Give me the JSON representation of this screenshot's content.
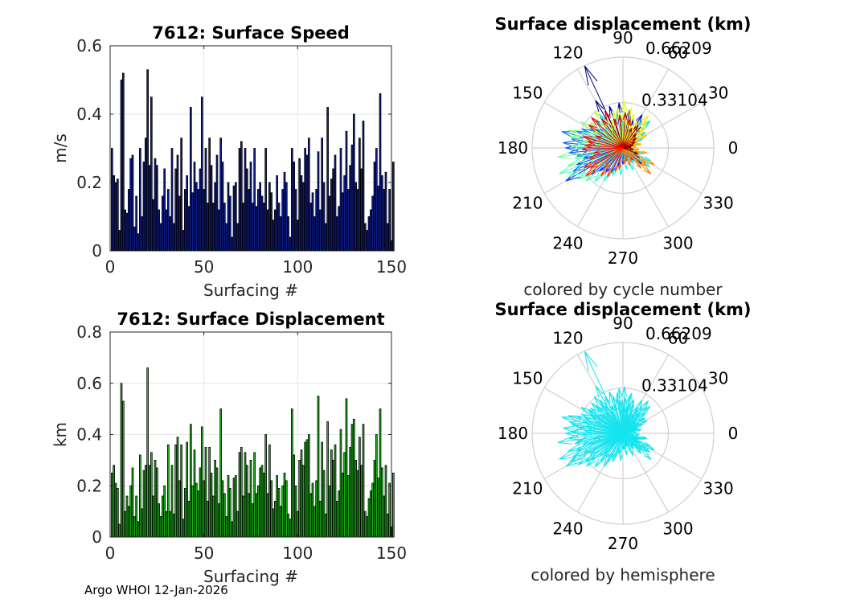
{
  "footer": "Argo WHOI 12-Jan-2026",
  "chart_data": [
    {
      "id": "speed",
      "type": "bar",
      "title": "7612: Surface Speed",
      "xlabel": "Surfacing #",
      "ylabel": "m/s",
      "xlim": [
        0,
        150
      ],
      "ylim": [
        0,
        0.6
      ],
      "xticks": [
        "0",
        "50",
        "100",
        "150"
      ],
      "yticks": [
        "0",
        "0.2",
        "0.4",
        "0.6"
      ],
      "grid": true,
      "color": "#1020a0",
      "x_start": 1,
      "values": [
        0.3,
        0.22,
        0.2,
        0.21,
        0.06,
        0.5,
        0.52,
        0.12,
        0.11,
        0.18,
        0.27,
        0.28,
        0.07,
        0.16,
        0.05,
        0.3,
        0.1,
        0.26,
        0.33,
        0.53,
        0.25,
        0.45,
        0.15,
        0.27,
        0.25,
        0.12,
        0.08,
        0.16,
        0.24,
        0.12,
        0.18,
        0.1,
        0.3,
        0.08,
        0.24,
        0.28,
        0.16,
        0.33,
        0.06,
        0.18,
        0.22,
        0.13,
        0.42,
        0.17,
        0.26,
        0.2,
        0.18,
        0.24,
        0.45,
        0.18,
        0.3,
        0.14,
        0.33,
        0.25,
        0.14,
        0.2,
        0.28,
        0.12,
        0.33,
        0.26,
        0.14,
        0.08,
        0.2,
        0.16,
        0.04,
        0.19,
        0.2,
        0.08,
        0.3,
        0.32,
        0.14,
        0.3,
        0.24,
        0.18,
        0.26,
        0.14,
        0.3,
        0.13,
        0.18,
        0.2,
        0.16,
        0.14,
        0.3,
        0.12,
        0.2,
        0.17,
        0.09,
        0.12,
        0.22,
        0.14,
        0.1,
        0.18,
        0.23,
        0.2,
        0.1,
        0.04,
        0.3,
        0.26,
        0.18,
        0.09,
        0.27,
        0.22,
        0.2,
        0.3,
        0.28,
        0.33,
        0.14,
        0.17,
        0.1,
        0.18,
        0.29,
        0.12,
        0.33,
        0.2,
        0.08,
        0.42,
        0.16,
        0.21,
        0.24,
        0.28,
        0.1,
        0.13,
        0.3,
        0.17,
        0.22,
        0.35,
        0.18,
        0.25,
        0.31,
        0.4,
        0.2,
        0.18,
        0.33,
        0.24,
        0.38,
        0.08,
        0.06,
        0.1,
        0.12,
        0.16,
        0.26,
        0.3,
        0.19,
        0.46,
        0.22,
        0.18,
        0.23,
        0.08,
        0.18,
        0.03,
        0.26
      ]
    },
    {
      "id": "displacement",
      "type": "bar",
      "title": "7612: Surface Displacement",
      "xlabel": "Surfacing #",
      "ylabel": "km",
      "xlim": [
        0,
        150
      ],
      "ylim": [
        0,
        0.8
      ],
      "xticks": [
        "0",
        "50",
        "100",
        "150"
      ],
      "yticks": [
        "0",
        "0.2",
        "0.4",
        "0.6",
        "0.8"
      ],
      "grid": true,
      "color": "#22c81e",
      "x_start": 1,
      "values": [
        0.25,
        0.28,
        0.21,
        0.19,
        0.05,
        0.6,
        0.53,
        0.1,
        0.16,
        0.12,
        0.2,
        0.27,
        0.08,
        0.16,
        0.06,
        0.32,
        0.11,
        0.26,
        0.28,
        0.66,
        0.28,
        0.33,
        0.16,
        0.3,
        0.27,
        0.13,
        0.08,
        0.16,
        0.2,
        0.1,
        0.36,
        0.1,
        0.28,
        0.09,
        0.36,
        0.39,
        0.22,
        0.36,
        0.07,
        0.19,
        0.37,
        0.14,
        0.44,
        0.2,
        0.34,
        0.21,
        0.18,
        0.27,
        0.43,
        0.22,
        0.35,
        0.14,
        0.35,
        0.25,
        0.16,
        0.3,
        0.27,
        0.13,
        0.5,
        0.22,
        0.17,
        0.08,
        0.24,
        0.19,
        0.06,
        0.23,
        0.24,
        0.1,
        0.33,
        0.35,
        0.16,
        0.33,
        0.28,
        0.17,
        0.3,
        0.13,
        0.33,
        0.17,
        0.2,
        0.27,
        0.28,
        0.25,
        0.4,
        0.17,
        0.36,
        0.22,
        0.11,
        0.14,
        0.24,
        0.19,
        0.12,
        0.2,
        0.25,
        0.22,
        0.09,
        0.07,
        0.5,
        0.32,
        0.2,
        0.1,
        0.3,
        0.34,
        0.28,
        0.37,
        0.38,
        0.4,
        0.17,
        0.21,
        0.12,
        0.22,
        0.55,
        0.14,
        0.37,
        0.26,
        0.09,
        0.45,
        0.2,
        0.34,
        0.3,
        0.36,
        0.14,
        0.18,
        0.42,
        0.25,
        0.33,
        0.54,
        0.24,
        0.35,
        0.44,
        0.46,
        0.3,
        0.26,
        0.39,
        0.28,
        0.44,
        0.1,
        0.08,
        0.15,
        0.18,
        0.21,
        0.3,
        0.4,
        0.23,
        0.5,
        0.27,
        0.16,
        0.28,
        0.09,
        0.21,
        0.04,
        0.25
      ]
    },
    {
      "id": "rose-cycle",
      "type": "compass",
      "title": "Surface displacement (km)",
      "subtitle": "colored by cycle number",
      "angle_labels": [
        "0",
        "30",
        "60",
        "90",
        "120",
        "150",
        "180",
        "210",
        "240",
        "270",
        "300",
        "330"
      ],
      "radial_labels": [
        "0.33104",
        "0.66209"
      ],
      "rmax": 0.66209,
      "color_mode": "cycle",
      "arrows": [
        [
          115,
          0.66
        ],
        [
          120,
          0.4
        ],
        [
          108,
          0.32
        ],
        [
          95,
          0.33
        ],
        [
          80,
          0.28
        ],
        [
          70,
          0.22
        ],
        [
          60,
          0.28
        ],
        [
          50,
          0.2
        ],
        [
          40,
          0.12
        ],
        [
          30,
          0.1
        ],
        [
          20,
          0.08
        ],
        [
          10,
          0.06
        ],
        [
          0,
          0.05
        ],
        [
          -10,
          0.06
        ],
        [
          -20,
          0.1
        ],
        [
          -30,
          0.14
        ],
        [
          -40,
          0.18
        ],
        [
          -50,
          0.12
        ],
        [
          -60,
          0.08
        ],
        [
          -75,
          0.1
        ],
        [
          -90,
          0.12
        ],
        [
          -105,
          0.14
        ],
        [
          -115,
          0.2
        ],
        [
          -125,
          0.22
        ],
        [
          -135,
          0.24
        ],
        [
          -140,
          0.3
        ],
        [
          -150,
          0.48
        ],
        [
          -155,
          0.4
        ],
        [
          -160,
          0.36
        ],
        [
          -165,
          0.3
        ],
        [
          -170,
          0.34
        ],
        [
          -175,
          0.4
        ],
        [
          180,
          0.42
        ],
        [
          175,
          0.44
        ],
        [
          170,
          0.38
        ],
        [
          165,
          0.46
        ],
        [
          160,
          0.36
        ],
        [
          155,
          0.33
        ],
        [
          150,
          0.28
        ],
        [
          145,
          0.24
        ],
        [
          140,
          0.22
        ],
        [
          135,
          0.28
        ],
        [
          130,
          0.2
        ],
        [
          125,
          0.3
        ],
        [
          100,
          0.26
        ],
        [
          90,
          0.2
        ],
        [
          85,
          0.18
        ],
        [
          75,
          0.14
        ],
        [
          65,
          0.12
        ],
        [
          55,
          0.24
        ],
        [
          45,
          0.28
        ],
        [
          35,
          0.2
        ],
        [
          25,
          0.16
        ],
        [
          15,
          0.12
        ],
        [
          -15,
          0.16
        ],
        [
          -25,
          0.22
        ],
        [
          -35,
          0.24
        ],
        [
          -45,
          0.16
        ],
        [
          -55,
          0.14
        ],
        [
          -65,
          0.18
        ],
        [
          -80,
          0.16
        ],
        [
          -95,
          0.2
        ],
        [
          -110,
          0.22
        ],
        [
          -120,
          0.28
        ],
        [
          -130,
          0.32
        ],
        [
          -138,
          0.36
        ],
        [
          -145,
          0.4
        ],
        [
          -152,
          0.44
        ],
        [
          -158,
          0.5
        ],
        [
          -162,
          0.42
        ],
        [
          -168,
          0.36
        ],
        [
          -172,
          0.48
        ],
        [
          178,
          0.38
        ],
        [
          172,
          0.32
        ],
        [
          168,
          0.4
        ],
        [
          162,
          0.42
        ],
        [
          158,
          0.3
        ],
        [
          152,
          0.26
        ],
        [
          148,
          0.36
        ],
        [
          142,
          0.3
        ],
        [
          138,
          0.2
        ],
        [
          132,
          0.26
        ],
        [
          128,
          0.34
        ],
        [
          122,
          0.24
        ],
        [
          118,
          0.18
        ],
        [
          112,
          0.22
        ],
        [
          105,
          0.28
        ],
        [
          98,
          0.3
        ],
        [
          92,
          0.24
        ],
        [
          88,
          0.34
        ],
        [
          82,
          0.2
        ],
        [
          78,
          0.3
        ],
        [
          72,
          0.26
        ],
        [
          68,
          0.18
        ],
        [
          62,
          0.22
        ],
        [
          58,
          0.16
        ],
        [
          52,
          0.3
        ],
        [
          48,
          0.26
        ],
        [
          42,
          0.22
        ],
        [
          38,
          0.18
        ],
        [
          32,
          0.14
        ],
        [
          28,
          0.2
        ],
        [
          22,
          0.12
        ],
        [
          18,
          0.1
        ],
        [
          12,
          0.14
        ],
        [
          5,
          0.1
        ],
        [
          -5,
          0.12
        ],
        [
          -12,
          0.18
        ],
        [
          -18,
          0.14
        ],
        [
          -28,
          0.26
        ],
        [
          -33,
          0.2
        ],
        [
          -38,
          0.22
        ],
        [
          -43,
          0.28
        ],
        [
          -48,
          0.2
        ],
        [
          -58,
          0.12
        ],
        [
          -68,
          0.14
        ],
        [
          -72,
          0.1
        ],
        [
          -85,
          0.12
        ],
        [
          -100,
          0.16
        ],
        [
          -108,
          0.18
        ],
        [
          -118,
          0.24
        ],
        [
          -128,
          0.26
        ],
        [
          -133,
          0.2
        ],
        [
          -143,
          0.34
        ],
        [
          -148,
          0.28
        ],
        [
          -153,
          0.32
        ],
        [
          -163,
          0.26
        ],
        [
          -170,
          0.22
        ],
        [
          -178,
          0.3
        ],
        [
          176,
          0.28
        ],
        [
          170,
          0.26
        ],
        [
          164,
          0.3
        ],
        [
          156,
          0.22
        ],
        [
          146,
          0.3
        ],
        [
          136,
          0.32
        ],
        [
          126,
          0.26
        ],
        [
          116,
          0.3
        ],
        [
          106,
          0.22
        ],
        [
          96,
          0.24
        ],
        [
          86,
          0.26
        ],
        [
          76,
          0.22
        ],
        [
          66,
          0.16
        ],
        [
          56,
          0.2
        ],
        [
          46,
          0.14
        ],
        [
          36,
          0.12
        ],
        [
          26,
          0.1
        ],
        [
          16,
          0.08
        ],
        [
          6,
          0.06
        ],
        [
          -8,
          0.08
        ],
        [
          -22,
          0.12
        ]
      ]
    },
    {
      "id": "rose-hemisphere",
      "type": "compass",
      "title": "Surface displacement (km)",
      "subtitle": "colored by hemisphere",
      "angle_labels": [
        "0",
        "30",
        "60",
        "90",
        "120",
        "150",
        "180",
        "210",
        "240",
        "270",
        "300",
        "330"
      ],
      "radial_labels": [
        "0.33104",
        "0.66209"
      ],
      "rmax": 0.66209,
      "color_mode": "single",
      "color": "#16e4ee",
      "arrows": "same"
    }
  ]
}
